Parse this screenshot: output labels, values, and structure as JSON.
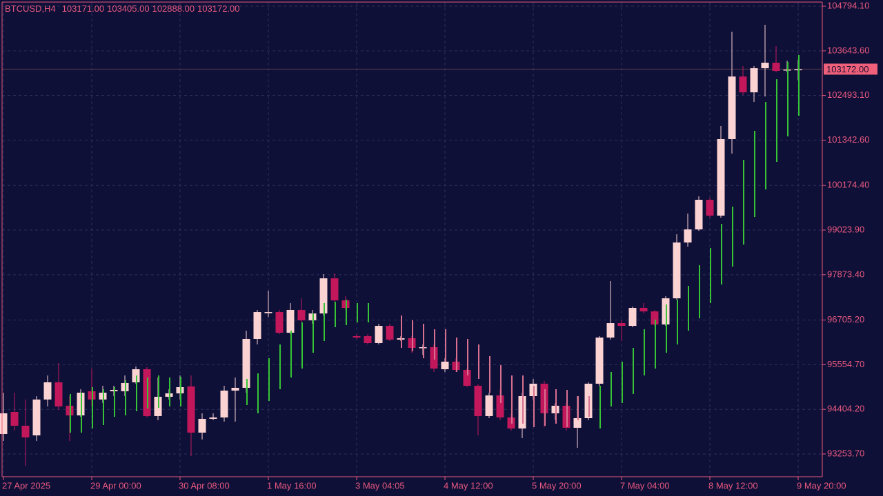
{
  "chart_data": {
    "type": "candlestick",
    "title": "BTCUSD,H4",
    "header_labels": [
      "103171.00",
      "103405.00",
      "102888.00",
      "103172.00"
    ],
    "categories": [
      "27 Apr 2025",
      null,
      null,
      null,
      null,
      null,
      null,
      null,
      "29 Apr 00:00",
      null,
      null,
      null,
      null,
      null,
      null,
      null,
      "30 Apr 08:00",
      null,
      null,
      null,
      null,
      null,
      null,
      null,
      "1 May 16:00",
      null,
      null,
      null,
      null,
      null,
      null,
      null,
      "3 May 04:05",
      null,
      null,
      null,
      null,
      null,
      null,
      null,
      "4 May 12:00",
      null,
      null,
      null,
      null,
      null,
      null,
      null,
      "5 May 20:00",
      null,
      null,
      null,
      null,
      null,
      null,
      null,
      "7 May 04:00",
      null,
      null,
      null,
      null,
      null,
      null,
      null,
      "8 May 12:00",
      null,
      null,
      null,
      null,
      null,
      null,
      null,
      "9 May 20:00"
    ],
    "open": [
      93769,
      94337,
      93982,
      93733,
      94657,
      95101,
      94497,
      94248,
      94870,
      94657,
      94870,
      94870,
      95101,
      95438,
      94231,
      94728,
      94816,
      94994,
      93804,
      94160,
      94195,
      94887,
      94959,
      96219,
      96894,
      96911,
      96379,
      96965,
      96698,
      96876,
      97781,
      97213,
      96290,
      96290,
      96113,
      96556,
      96201,
      96237,
      95988,
      96006,
      95438,
      95633,
      95420,
      95012,
      94231,
      94763,
      94195,
      93911,
      94745,
      95065,
      94302,
      94497,
      93929,
      94177,
      95065,
      96255,
      96627,
      96556,
      97018,
      96929,
      96592,
      97266,
      98705,
      99042,
      99805,
      99397,
      101368,
      102983,
      102575,
      103196,
      103338,
      103143,
      103171
    ],
    "high": [
      94834,
      94834,
      94657,
      94745,
      95278,
      95598,
      94745,
      94923,
      95456,
      95012,
      95012,
      95278,
      95509,
      95491,
      95225,
      94923,
      95278,
      95278,
      94302,
      94302,
      95012,
      95225,
      96432,
      96965,
      97462,
      96965,
      97142,
      97266,
      96965,
      97888,
      97906,
      97320,
      96343,
      96343,
      96610,
      96610,
      96290,
      96290,
      96077,
      96077,
      95722,
      95722,
      95456,
      95047,
      94834,
      94923,
      94302,
      94834,
      95189,
      95136,
      94568,
      94568,
      94745,
      95101,
      96290,
      97710,
      96698,
      97053,
      97142,
      96965,
      97320,
      98918,
      99450,
      99894,
      99859,
      101705,
      104137,
      103250,
      103250,
      104315,
      103765,
      103392,
      103405
    ],
    "low": [
      93591,
      93858,
      92952,
      93591,
      94479,
      94390,
      93591,
      94213,
      94479,
      94568,
      94745,
      94745,
      95065,
      94195,
      94124,
      94657,
      94657,
      93201,
      93627,
      94124,
      94089,
      94089,
      94834,
      96077,
      96787,
      96343,
      96343,
      96645,
      96610,
      96823,
      97178,
      96965,
      96219,
      96077,
      96077,
      96166,
      96166,
      95864,
      95811,
      95367,
      95367,
      95367,
      94976,
      93733,
      94177,
      94124,
      93858,
      93662,
      94657,
      93947,
      94124,
      93858,
      93414,
      94124,
      95012,
      96201,
      96166,
      96521,
      96876,
      96556,
      96556,
      97231,
      98598,
      99006,
      99344,
      99344,
      100995,
      102504,
      102326,
      102468,
      103090,
      103090,
      102888
    ],
    "close": [
      94302,
      93982,
      93680,
      94657,
      95101,
      94479,
      94248,
      94834,
      94657,
      94834,
      94905,
      95083,
      95438,
      94231,
      94728,
      94816,
      94976,
      93804,
      94160,
      94195,
      94887,
      94959,
      96219,
      96911,
      96911,
      96379,
      96965,
      96698,
      96876,
      97781,
      97213,
      97018,
      96255,
      96113,
      96556,
      96201,
      96237,
      95988,
      96006,
      95456,
      95633,
      95420,
      95012,
      94231,
      94763,
      94195,
      93911,
      94745,
      95065,
      94302,
      94497,
      93929,
      94177,
      95065,
      96255,
      96627,
      96556,
      97018,
      96929,
      96592,
      97266,
      98705,
      99042,
      99805,
      99397,
      101368,
      102983,
      102575,
      103196,
      103338,
      103125,
      103161,
      103172
    ],
    "bull_color": "#fcd3d3",
    "bear_color": "#c2185b",
    "overlays": [
      {
        "color": "#36c436",
        "high": [
          null,
          null,
          null,
          null,
          null,
          null,
          94799,
          94834,
          94976,
          94923,
          94976,
          95154,
          95278,
          95225,
          95278,
          95225,
          95243,
          null,
          null,
          null,
          null,
          null,
          95189,
          95331,
          95722,
          96077,
          96432,
          96645,
          96876,
          97142,
          97178,
          97231,
          97142,
          97142,
          null,
          null,
          null,
          null,
          null,
          null,
          null,
          null,
          null,
          null,
          null,
          null,
          null,
          null,
          null,
          null,
          null,
          null,
          null,
          null,
          95012,
          95367,
          95633,
          95988,
          96468,
          96716,
          97107,
          97231,
          97586,
          98119,
          98563,
          99184,
          99628,
          100835,
          101581,
          102326,
          102912,
          103356,
          103534
        ],
        "low": [
          null,
          null,
          null,
          null,
          null,
          null,
          93804,
          93804,
          93911,
          94000,
          94213,
          94248,
          94355,
          94426,
          94444,
          94479,
          94479,
          null,
          null,
          null,
          null,
          null,
          94515,
          94302,
          94621,
          94923,
          95225,
          95456,
          95864,
          96166,
          96521,
          96574,
          96645,
          96645,
          null,
          null,
          null,
          null,
          null,
          null,
          null,
          null,
          null,
          null,
          null,
          null,
          null,
          null,
          null,
          null,
          null,
          null,
          null,
          null,
          93911,
          94479,
          94568,
          94799,
          95278,
          95456,
          95864,
          96077,
          96432,
          96752,
          97142,
          97622,
          98083,
          98651,
          99361,
          100072,
          100782,
          101439,
          101971
        ]
      },
      {
        "color": "#d8708f",
        "high": [
          null,
          null,
          null,
          null,
          null,
          null,
          null,
          null,
          null,
          null,
          null,
          null,
          null,
          null,
          null,
          null,
          null,
          null,
          null,
          null,
          null,
          null,
          null,
          null,
          null,
          null,
          null,
          null,
          null,
          null,
          null,
          null,
          null,
          null,
          null,
          null,
          96823,
          96698,
          96610,
          96468,
          96468,
          96255,
          96219,
          96077,
          95775,
          95544,
          95278,
          95278,
          95012,
          94923,
          94923,
          94905,
          94745,
          94745,
          null,
          null,
          null,
          null,
          null,
          null,
          null,
          null,
          null,
          null,
          null,
          null,
          null,
          null,
          null,
          null,
          null,
          null,
          null
        ],
        "low": [
          null,
          null,
          null,
          null,
          null,
          null,
          null,
          null,
          null,
          null,
          null,
          null,
          null,
          null,
          null,
          null,
          null,
          null,
          null,
          null,
          null,
          null,
          null,
          null,
          null,
          null,
          null,
          null,
          null,
          null,
          null,
          null,
          null,
          null,
          null,
          null,
          95988,
          95899,
          95722,
          95686,
          95633,
          95367,
          95278,
          95189,
          94834,
          94568,
          94035,
          94035,
          93947,
          93982,
          94035,
          93947,
          94124,
          94213,
          null,
          null,
          null,
          null,
          null,
          null,
          null,
          null,
          null,
          null,
          null,
          null,
          null,
          null,
          null,
          null,
          null,
          null,
          null
        ]
      }
    ],
    "ylim": [
      92668,
      104901
    ],
    "yticks": [
      {
        "value": 104794.1,
        "label": "104794.10"
      },
      {
        "value": 103643.6,
        "label": "103643.60"
      },
      {
        "value": 102493.1,
        "label": "102493.10"
      },
      {
        "value": 101342.6,
        "label": "101342.60"
      },
      {
        "value": 100174.4,
        "label": "100174.40"
      },
      {
        "value": 99023.9,
        "label": "99023.90"
      },
      {
        "value": 97873.4,
        "label": "97873.40"
      },
      {
        "value": 96705.2,
        "label": "96705.20"
      },
      {
        "value": 95554.7,
        "label": "95554.70"
      },
      {
        "value": 94404.2,
        "label": "94404.20"
      },
      {
        "value": 93253.7,
        "label": "93253.70"
      }
    ],
    "current_price": {
      "value": 103172,
      "label": "103172.00"
    },
    "grid": true
  }
}
